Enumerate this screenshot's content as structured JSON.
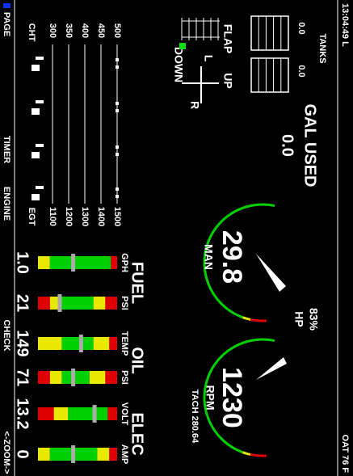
{
  "status_bar": {
    "time": "13:04:49 L",
    "oat": "OAT  76 F"
  },
  "tanks": {
    "title": "TANKS",
    "left": "0.0",
    "right": "0.0"
  },
  "fuel_used": {
    "title": "GAL USED",
    "value": "0.0"
  },
  "flaps": {
    "title": "FLAP",
    "up": "UP",
    "down": "DOWN",
    "left": "L",
    "right": "R"
  },
  "manifold": {
    "value": "29.8",
    "label": "MAN",
    "power": "83%",
    "power_label": "HP"
  },
  "tach": {
    "value": "1230",
    "label": "RPM",
    "hours": "TACH  280.64"
  },
  "temps": {
    "cht_label": "CHT",
    "egt_label": "EGT",
    "cht_scale": [
      "500",
      "450",
      "400",
      "350",
      "300"
    ],
    "egt_scale": [
      "1500",
      "1400",
      "1300",
      "1200",
      "1100"
    ]
  },
  "gauges": [
    {
      "group": "FUEL",
      "items": [
        {
          "label": "GPH",
          "value": "1.0"
        },
        {
          "label": "PSI",
          "value": "21"
        }
      ]
    },
    {
      "group": "OIL",
      "items": [
        {
          "label": "TEMP",
          "value": "149"
        },
        {
          "label": "PSI",
          "value": "71"
        }
      ]
    },
    {
      "group": "ELEC",
      "items": [
        {
          "label": "VOLT",
          "value": "13.2"
        },
        {
          "label": "AMP",
          "value": "0"
        }
      ]
    }
  ],
  "softkeys": [
    "PAGE",
    "TIMER",
    "ENGINE",
    "CHECK",
    "<-ZOOM->"
  ]
}
